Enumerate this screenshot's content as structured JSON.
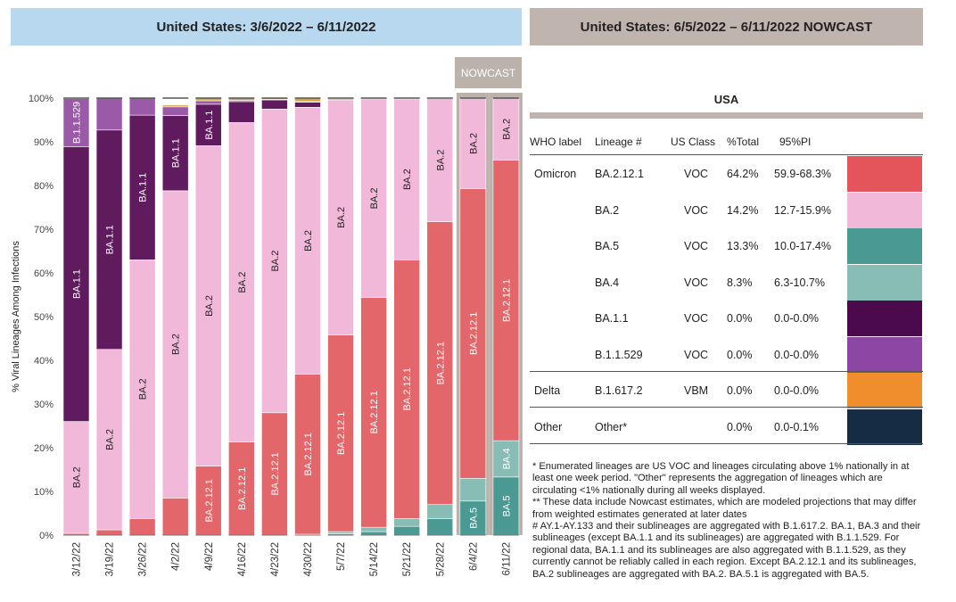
{
  "headers": {
    "left": "United States: 3/6/2022 – 6/11/2022",
    "right": "United States: 6/5/2022 – 6/11/2022 NOWCAST",
    "nowcast_tag": "NOWCAST"
  },
  "chart_data": {
    "type": "bar",
    "stacked": true,
    "ylabel": "% Viral Lineages Among Infections",
    "ylim": [
      0,
      100
    ],
    "yticks": [
      "0%",
      "10%",
      "20%",
      "30%",
      "40%",
      "50%",
      "60%",
      "70%",
      "80%",
      "90%",
      "100%"
    ],
    "categories": [
      "3/12/22",
      "3/19/22",
      "3/26/22",
      "4/2/22",
      "4/9/22",
      "4/16/22",
      "4/23/22",
      "4/30/22",
      "5/7/22",
      "5/14/22",
      "5/21/22",
      "5/28/22",
      "6/4/22",
      "6/11/22"
    ],
    "nowcast_categories": [
      "6/4/22",
      "6/11/22"
    ],
    "series": [
      {
        "name": "BA.5",
        "color": "#4a9a93",
        "values": [
          0,
          0,
          0,
          0,
          0,
          0,
          0,
          0,
          0.3,
          0.8,
          2.0,
          3.8,
          7.8,
          13.3
        ]
      },
      {
        "name": "BA.4",
        "color": "#88bdb5",
        "values": [
          0,
          0,
          0,
          0,
          0,
          0,
          0,
          0.2,
          0.5,
          1.0,
          1.8,
          3.2,
          5.2,
          8.3
        ]
      },
      {
        "name": "BA.2.12.1",
        "color": "#e3666a",
        "values": [
          0.4,
          1.2,
          3.8,
          8.5,
          15.8,
          21.3,
          28.0,
          36.6,
          45.0,
          52.6,
          59.2,
          64.7,
          66.3,
          64.2
        ]
      },
      {
        "name": "BA.2",
        "color": "#f2b8da",
        "values": [
          25.6,
          41.3,
          59.2,
          70.3,
          73.3,
          73.1,
          69.5,
          61.1,
          53.8,
          45.3,
          36.8,
          28.2,
          20.6,
          14.2
        ]
      },
      {
        "name": "BA.1.1",
        "color": "#5f1b5e",
        "values": [
          62.9,
          50.2,
          33.1,
          17.2,
          9.5,
          4.8,
          2.1,
          1.2,
          0.2,
          0.2,
          0.1,
          0.1,
          0,
          0
        ]
      },
      {
        "name": "B.1.1.529",
        "color": "#9a5aa8",
        "values": [
          11.0,
          7.3,
          3.9,
          2.0,
          0.8,
          0.3,
          0.1,
          0.1,
          0,
          0,
          0,
          0,
          0,
          0
        ]
      },
      {
        "name": "Other",
        "color": "#d9a93e",
        "values": [
          0.1,
          0,
          0,
          0.4,
          0.6,
          0.5,
          0.3,
          0.8,
          0.2,
          0.1,
          0.1,
          0,
          0.1,
          0
        ]
      }
    ],
    "labels": [
      {
        "category": "3/12/22",
        "series": "B.1.1.529",
        "text": "B.1.1.529"
      },
      {
        "category": "3/12/22",
        "series": "BA.1.1",
        "text": "BA.1.1"
      },
      {
        "category": "3/12/22",
        "series": "BA.2",
        "text": "BA.2"
      },
      {
        "category": "3/19/22",
        "series": "BA.1.1",
        "text": "BA.1.1"
      },
      {
        "category": "3/19/22",
        "series": "BA.2",
        "text": "BA.2"
      },
      {
        "category": "3/26/22",
        "series": "BA.1.1",
        "text": "BA.1.1"
      },
      {
        "category": "3/26/22",
        "series": "BA.2",
        "text": "BA.2"
      },
      {
        "category": "4/2/22",
        "series": "BA.1.1",
        "text": "BA.1.1"
      },
      {
        "category": "4/2/22",
        "series": "BA.2",
        "text": "BA.2"
      },
      {
        "category": "4/9/22",
        "series": "BA.1.1",
        "text": "BA.1.1"
      },
      {
        "category": "4/9/22",
        "series": "BA.2",
        "text": "BA.2"
      },
      {
        "category": "4/9/22",
        "series": "BA.2.12.1",
        "text": "BA.2.12.1"
      },
      {
        "category": "4/16/22",
        "series": "BA.2",
        "text": "BA.2"
      },
      {
        "category": "4/16/22",
        "series": "BA.2.12.1",
        "text": "BA.2.12.1"
      },
      {
        "category": "4/23/22",
        "series": "BA.2",
        "text": "BA.2"
      },
      {
        "category": "4/23/22",
        "series": "BA.2.12.1",
        "text": "BA.2.12.1"
      },
      {
        "category": "4/30/22",
        "series": "BA.2",
        "text": "BA.2"
      },
      {
        "category": "4/30/22",
        "series": "BA.2.12.1",
        "text": "BA.2.12.1"
      },
      {
        "category": "5/7/22",
        "series": "BA.2",
        "text": "BA.2"
      },
      {
        "category": "5/7/22",
        "series": "BA.2.12.1",
        "text": "BA.2.12.1"
      },
      {
        "category": "5/14/22",
        "series": "BA.2",
        "text": "BA.2"
      },
      {
        "category": "5/14/22",
        "series": "BA.2.12.1",
        "text": "BA.2.12.1"
      },
      {
        "category": "5/21/22",
        "series": "BA.2",
        "text": "BA.2"
      },
      {
        "category": "5/21/22",
        "series": "BA.2.12.1",
        "text": "BA.2.12.1"
      },
      {
        "category": "5/28/22",
        "series": "BA.2",
        "text": "BA.2"
      },
      {
        "category": "5/28/22",
        "series": "BA.2.12.1",
        "text": "BA.2.12.1"
      },
      {
        "category": "6/4/22",
        "series": "BA.2",
        "text": "BA.2"
      },
      {
        "category": "6/4/22",
        "series": "BA.2.12.1",
        "text": "BA.2.12.1"
      },
      {
        "category": "6/4/22",
        "series": "BA.5",
        "text": "BA.5"
      },
      {
        "category": "6/11/22",
        "series": "BA.2",
        "text": "BA.2"
      },
      {
        "category": "6/11/22",
        "series": "BA.2.12.1",
        "text": "BA.2.12.1"
      },
      {
        "category": "6/11/22",
        "series": "BA.4",
        "text": "BA.4"
      },
      {
        "category": "6/11/22",
        "series": "BA.5",
        "text": "BA.5"
      }
    ]
  },
  "table": {
    "title": "USA",
    "columns": [
      "WHO label",
      "Lineage #",
      "US Class",
      "%Total",
      "95%PI"
    ],
    "rows": [
      {
        "who": "Omicron",
        "lineage": "BA.2.12.1",
        "class": "VOC",
        "total": "64.2%",
        "pi": "59.9-68.3%",
        "color": "#e3555b"
      },
      {
        "who": "",
        "lineage": "BA.2",
        "class": "VOC",
        "total": "14.2%",
        "pi": "12.7-15.9%",
        "color": "#f2b8da"
      },
      {
        "who": "",
        "lineage": "BA.5",
        "class": "VOC",
        "total": "13.3%",
        "pi": "10.0-17.4%",
        "color": "#4a9a93"
      },
      {
        "who": "",
        "lineage": "BA.4",
        "class": "VOC",
        "total": "8.3%",
        "pi": "6.3-10.7%",
        "color": "#88bdb5"
      },
      {
        "who": "",
        "lineage": "BA.1.1",
        "class": "VOC",
        "total": "0.0%",
        "pi": "0.0-0.0%",
        "color": "#4b0a4c"
      },
      {
        "who": "",
        "lineage": "B.1.1.529",
        "class": "VOC",
        "total": "0.0%",
        "pi": "0.0-0.0%",
        "color": "#8e46a4"
      },
      {
        "who": "Delta",
        "lineage": "B.1.617.2",
        "class": "VBM",
        "total": "0.0%",
        "pi": "0.0-0.0%",
        "color": "#f08e2e"
      },
      {
        "who": "Other",
        "lineage": "Other*",
        "class": "",
        "total": "0.0%",
        "pi": "0.0-0.1%",
        "color": "#162c45"
      }
    ]
  },
  "footnotes": [
    "*     Enumerated lineages are US VOC and lineages circulating above 1% nationally in at least one week period. \"Other\" represents the aggregation of lineages which are circulating <1% nationally during all weeks displayed.",
    "**     These data include Nowcast estimates, which are modeled projections that may differ from weighted estimates generated at later dates",
    "#     AY.1-AY.133 and their sublineages are aggregated with B.1.617.2. BA.1, BA.3 and their sublineages (except BA.1.1 and its sublineages) are aggregated with B.1.1.529. For regional data, BA.1.1 and its sublineages are also aggregated with B.1.1.529, as they currently cannot be reliably called in each region. Except BA.2.12.1 and its sublineages, BA.2 sublineages are aggregated with BA.2. BA.5.1 is aggregated with BA.5."
  ]
}
